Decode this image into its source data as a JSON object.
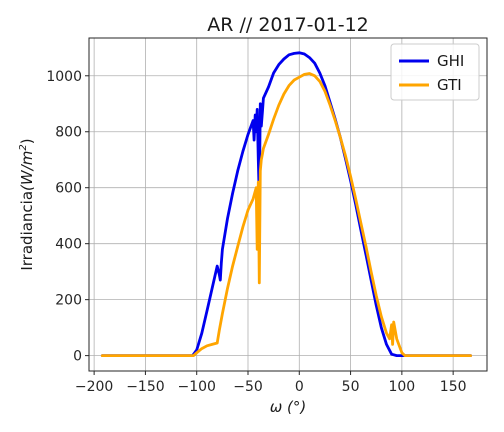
{
  "chart_data": {
    "type": "line",
    "title": "AR // 2017-01-12",
    "xlabel": "ω (°)",
    "ylabel_main": "Irradiancia",
    "ylabel_unit": "(W/m",
    "ylabel_exp": "2",
    "ylabel_close": ")",
    "xlim": [
      -205,
      183
    ],
    "ylim": [
      -55,
      1135
    ],
    "xticks": [
      -200,
      -150,
      -100,
      -50,
      0,
      50,
      100,
      150
    ],
    "xtick_labels": [
      "−200",
      "−150",
      "−100",
      "−50",
      "0",
      "50",
      "100",
      "150"
    ],
    "yticks": [
      0,
      200,
      400,
      600,
      800,
      1000
    ],
    "ytick_labels": [
      "0",
      "200",
      "400",
      "600",
      "800",
      "1000"
    ],
    "grid": true,
    "legend_position": "top-right",
    "series": [
      {
        "name": "GHI",
        "color": "#0000ee",
        "x": [
          -192,
          -110,
          -104,
          -100,
          -95,
          -90,
          -85,
          -80,
          -78,
          -77,
          -76,
          -75,
          -70,
          -65,
          -60,
          -55,
          -50,
          -45,
          -44,
          -43,
          -42,
          -41,
          -40,
          -39,
          -38,
          -37,
          -36,
          -35,
          -30,
          -25,
          -20,
          -15,
          -10,
          -5,
          0,
          5,
          10,
          15,
          20,
          25,
          30,
          35,
          40,
          45,
          50,
          55,
          60,
          65,
          70,
          75,
          80,
          85,
          90,
          95,
          100,
          102,
          105,
          110,
          120,
          140,
          167
        ],
        "y": [
          0,
          0,
          0,
          20,
          80,
          160,
          240,
          320,
          290,
          270,
          330,
          380,
          490,
          580,
          660,
          730,
          790,
          840,
          770,
          860,
          800,
          880,
          700,
          560,
          900,
          820,
          870,
          920,
          960,
          1010,
          1040,
          1060,
          1075,
          1080,
          1082,
          1078,
          1065,
          1045,
          1010,
          965,
          905,
          845,
          780,
          705,
          625,
          540,
          450,
          360,
          270,
          180,
          100,
          40,
          5,
          0,
          0,
          0,
          0,
          0,
          0,
          0,
          0
        ]
      },
      {
        "name": "GTI",
        "color": "#ffa500",
        "x": [
          -192,
          -110,
          -103,
          -100,
          -95,
          -90,
          -85,
          -80,
          -78,
          -75,
          -70,
          -65,
          -60,
          -55,
          -50,
          -45,
          -42,
          -41,
          -40,
          -39,
          -38,
          -37,
          -36,
          -35,
          -30,
          -25,
          -20,
          -15,
          -10,
          -5,
          0,
          5,
          10,
          15,
          20,
          25,
          30,
          35,
          40,
          45,
          50,
          55,
          60,
          65,
          70,
          75,
          80,
          85,
          88,
          90,
          91,
          92,
          95,
          98,
          100,
          103,
          110,
          120,
          140,
          167
        ],
        "y": [
          0,
          0,
          0,
          10,
          25,
          35,
          40,
          45,
          90,
          150,
          240,
          320,
          390,
          460,
          520,
          560,
          600,
          380,
          620,
          260,
          660,
          700,
          720,
          740,
          790,
          845,
          895,
          935,
          965,
          985,
          995,
          1005,
          1008,
          1000,
          980,
          945,
          895,
          840,
          780,
          715,
          640,
          560,
          475,
          390,
          300,
          215,
          140,
          80,
          60,
          110,
          40,
          120,
          60,
          30,
          10,
          0,
          0,
          0,
          0,
          0
        ]
      }
    ]
  }
}
